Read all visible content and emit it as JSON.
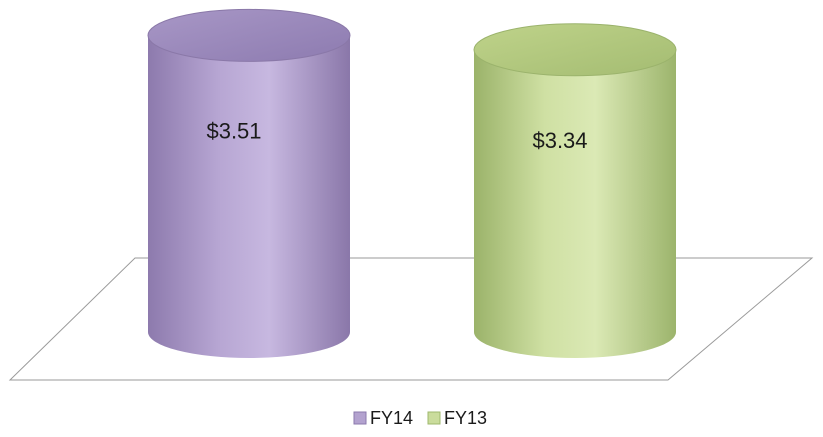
{
  "chart_data": {
    "type": "bar",
    "style": "3d-cylinder",
    "categories": [
      "FY14",
      "FY13"
    ],
    "values": [
      3.51,
      3.34
    ],
    "data_labels": [
      "$3.51",
      "$3.34"
    ],
    "series_colors": [
      "#b3a2cf",
      "#cadc9c"
    ],
    "legend": {
      "position": "bottom",
      "entries": [
        {
          "label": "FY14",
          "color": "#b3a2cf"
        },
        {
          "label": "FY13",
          "color": "#cadc9c"
        }
      ]
    },
    "grid": false,
    "title": "",
    "xlabel": "",
    "ylabel": ""
  }
}
